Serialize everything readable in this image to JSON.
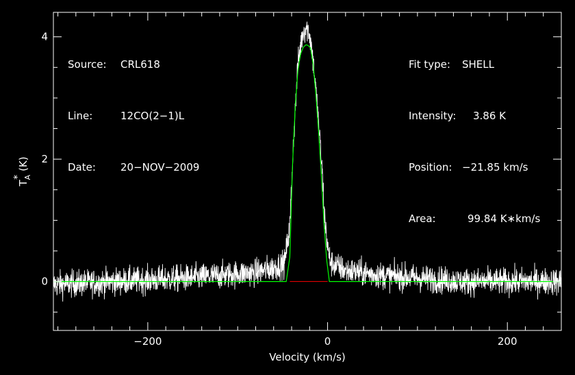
{
  "info_left": [
    {
      "key": "Source:",
      "value": "CRL618"
    },
    {
      "key": "Line:",
      "value": "12CO(2−1)L"
    },
    {
      "key": "Date:",
      "value": "20−NOV−2009"
    }
  ],
  "info_right": [
    {
      "key": "Fit type:",
      "value": "SHELL"
    },
    {
      "key": "Intensity:",
      "value": "3.86 K"
    },
    {
      "key": "Position:",
      "value": "−21.85 km/s"
    },
    {
      "key": "Area:",
      "value": "99.84 K∗km/s"
    }
  ],
  "colors": {
    "background": "#000000",
    "axes": "#ffffff",
    "spectrum": "#ffffff",
    "fit": "#00ff00",
    "baseline": "#ff0000"
  },
  "chart_data": {
    "type": "line",
    "xlabel": "Velocity (km/s)",
    "ylabel_main": "T",
    "ylabel_sup": "*",
    "ylabel_sub": "A",
    "ylabel_unit": "(K)",
    "xlim": [
      -305,
      260
    ],
    "ylim": [
      -0.8,
      4.4
    ],
    "x_ticks_major": [
      -200,
      0,
      200
    ],
    "x_tick_labels": [
      "−200",
      "0",
      "200"
    ],
    "y_ticks_major": [
      0,
      2,
      4
    ],
    "y_tick_labels": [
      "0",
      "2",
      "4"
    ],
    "grid": false,
    "series": [
      {
        "kind": "observed",
        "noise_rms": 0.11,
        "profile_x": [
          -305,
          -150,
          -80,
          -60,
          -48,
          -42,
          -38,
          -33,
          -28,
          -24,
          -21,
          -18,
          -14,
          -10,
          -6,
          -3,
          1,
          4,
          20,
          60,
          150,
          260
        ],
        "profile_y": [
          -0.05,
          0.06,
          0.15,
          0.22,
          0.3,
          0.9,
          2.3,
          3.55,
          4.05,
          4.15,
          4.1,
          3.85,
          3.3,
          2.6,
          1.8,
          1.0,
          0.45,
          0.3,
          0.18,
          0.1,
          0.0,
          0.0
        ]
      },
      {
        "kind": "fit",
        "x": [
          -305,
          -46,
          -42,
          -39,
          -36,
          -33,
          -30,
          -27,
          -24,
          -21.85,
          -19,
          -16,
          -13,
          -10,
          -7,
          -4,
          -1,
          2,
          260
        ],
        "y": [
          0,
          0,
          0.4,
          1.9,
          2.85,
          3.45,
          3.72,
          3.83,
          3.87,
          3.86,
          3.82,
          3.55,
          3.05,
          2.45,
          1.75,
          0.95,
          0.35,
          0,
          0
        ]
      },
      {
        "kind": "baseline",
        "x": [
          -42,
          0
        ],
        "y": [
          0,
          0
        ]
      }
    ]
  }
}
